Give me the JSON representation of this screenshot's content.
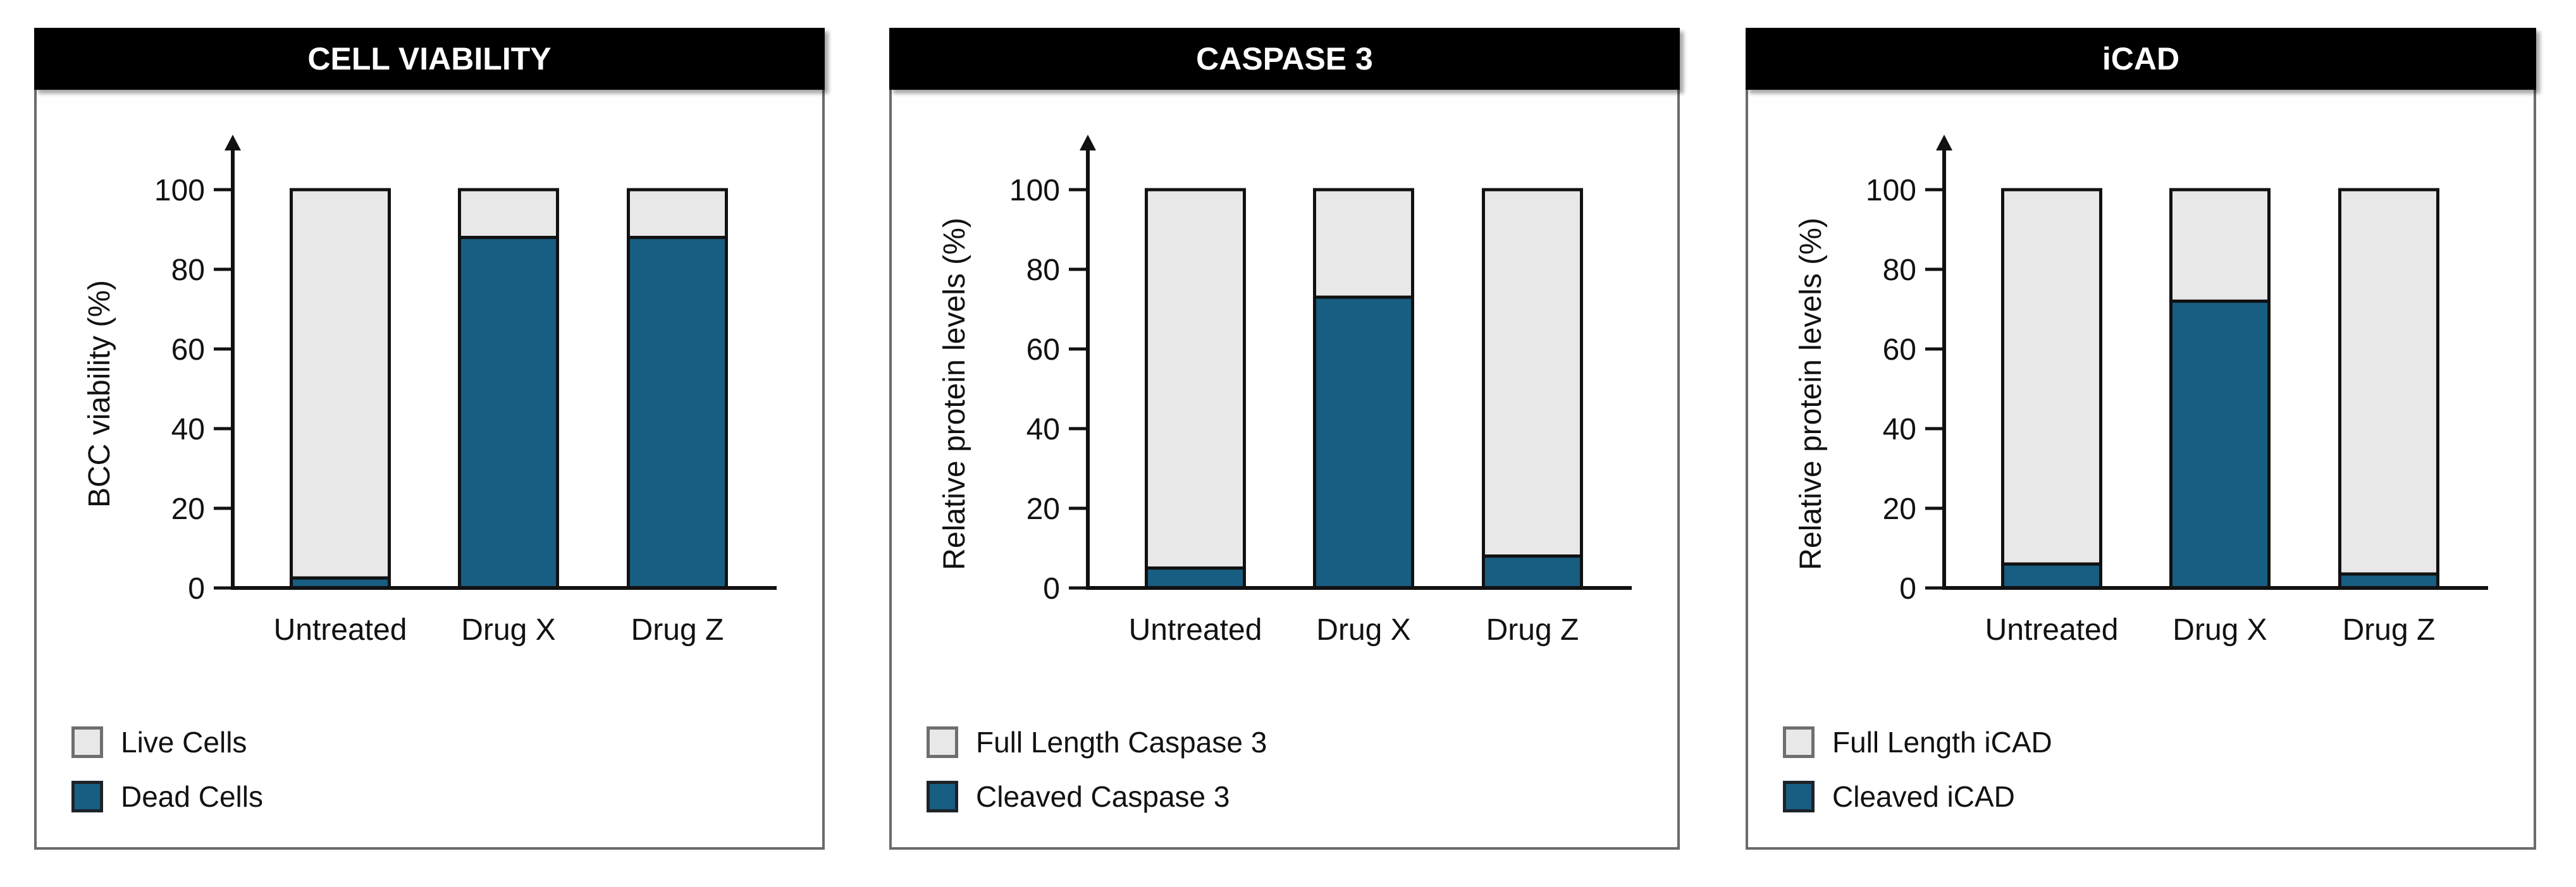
{
  "colors": {
    "light_fill": "#e8e8e8",
    "dark_fill": "#175e82",
    "outline": "#111111",
    "header_bg": "#000000",
    "header_text": "#ffffff"
  },
  "chart_data": [
    {
      "type": "bar",
      "stacked": true,
      "title": "CELL VIABILITY",
      "xlabel": "",
      "ylabel": "BCC viability (%)",
      "ylim": [
        0,
        100
      ],
      "yticks": [
        "0",
        "20",
        "40",
        "60",
        "80",
        "100"
      ],
      "categories": [
        "Untreated",
        "Drug X",
        "Drug Z"
      ],
      "series": [
        {
          "name": "Live Cells",
          "values": [
            97.5,
            12,
            12
          ]
        },
        {
          "name": "Dead Cells",
          "values": [
            2.5,
            88,
            88
          ]
        }
      ],
      "legend": "bottom-left"
    },
    {
      "type": "bar",
      "stacked": true,
      "title": "CASPASE 3",
      "xlabel": "",
      "ylabel": "Relative protein levels (%)",
      "ylim": [
        0,
        100
      ],
      "yticks": [
        "0",
        "20",
        "40",
        "60",
        "80",
        "100"
      ],
      "categories": [
        "Untreated",
        "Drug X",
        "Drug Z"
      ],
      "series": [
        {
          "name": "Full Length Caspase 3",
          "values": [
            95,
            27,
            92
          ]
        },
        {
          "name": "Cleaved Caspase 3",
          "values": [
            5,
            73,
            8
          ]
        }
      ],
      "legend": "bottom-left"
    },
    {
      "type": "bar",
      "stacked": true,
      "title": "iCAD",
      "xlabel": "",
      "ylabel": "Relative protein levels (%)",
      "ylim": [
        0,
        100
      ],
      "yticks": [
        "0",
        "20",
        "40",
        "60",
        "80",
        "100"
      ],
      "categories": [
        "Untreated",
        "Drug X",
        "Drug Z"
      ],
      "series": [
        {
          "name": "Full Length iCAD",
          "values": [
            94,
            28,
            96.5
          ]
        },
        {
          "name": "Cleaved iCAD",
          "values": [
            6,
            72,
            3.5
          ]
        }
      ],
      "legend": "bottom-left"
    }
  ]
}
